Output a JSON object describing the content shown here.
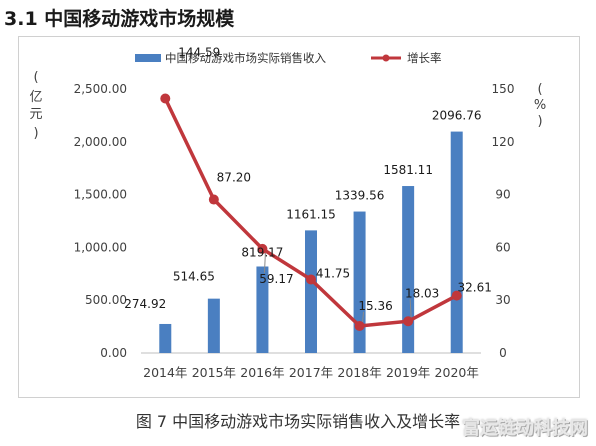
{
  "section_title": "3.1  中国移动游戏市场规模",
  "caption": "图 7  中国移动游戏市场实际销售收入及增长率",
  "watermark": "富运链动科技网",
  "chart_data": {
    "type": "bar",
    "title": "",
    "categories": [
      "2014年",
      "2015年",
      "2016年",
      "2017年",
      "2018年",
      "2019年",
      "2020年"
    ],
    "series": [
      {
        "name": "中国移动游戏市场实际销售收入",
        "type": "bar",
        "axis": "left",
        "color": "#4a7fc1",
        "values": [
          274.92,
          514.65,
          819.17,
          1161.15,
          1339.56,
          1581.11,
          2096.76
        ],
        "labels": [
          "274.92",
          "514.65",
          "819.17",
          "1161.15",
          "1339.56",
          "1581.11",
          "2096.76"
        ]
      },
      {
        "name": "增长率",
        "type": "line",
        "axis": "right",
        "color": "#c0373c",
        "values": [
          144.59,
          87.2,
          59.17,
          41.75,
          15.36,
          18.03,
          32.61
        ],
        "labels": [
          "144.59",
          "87.20",
          "59.17",
          "41.75",
          "15.36",
          "18.03",
          "32.61"
        ]
      }
    ],
    "y_left": {
      "label": "亿元",
      "ylim": [
        0,
        2500
      ],
      "ticks": [
        0,
        500,
        1000,
        1500,
        2000,
        2500
      ],
      "tick_labels": [
        "0.00",
        "500.00",
        "1,000.00",
        "1,500.00",
        "2,000.00",
        "2,500.00"
      ]
    },
    "y_right": {
      "label": "%",
      "ylim": [
        0,
        150
      ],
      "ticks": [
        0,
        30,
        60,
        90,
        120,
        150
      ],
      "tick_labels": [
        "0",
        "30",
        "60",
        "90",
        "120",
        "150"
      ]
    },
    "grid": false,
    "legend": "top-center"
  }
}
